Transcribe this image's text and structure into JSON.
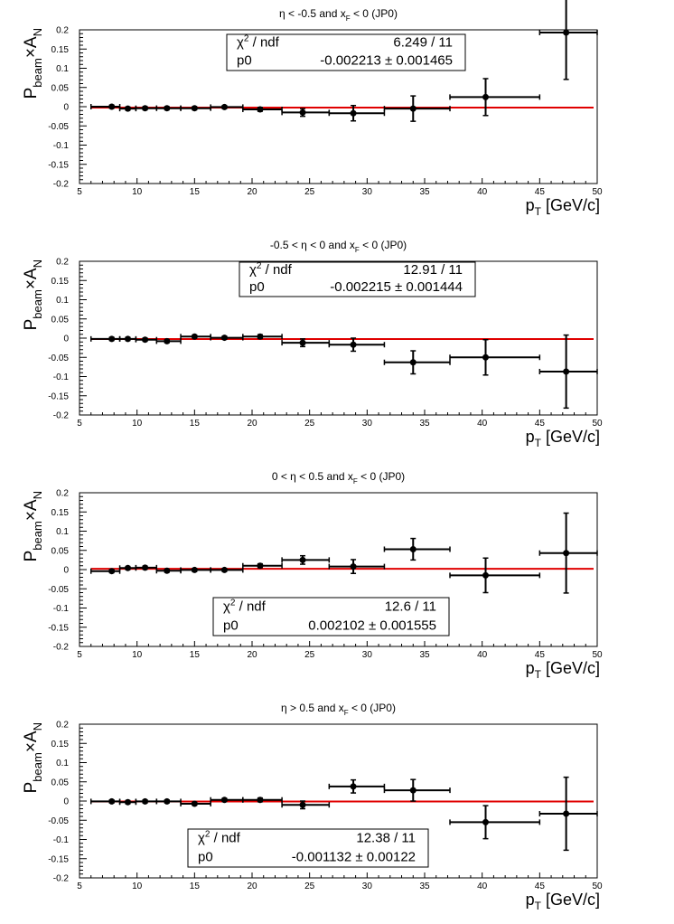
{
  "colors": {
    "fit_line": "#e00000",
    "points": "#000000",
    "frame": "#000000"
  },
  "chart_data": [
    {
      "type": "scatter",
      "title": "η < -0.5 and x_F < 0 (JP0)",
      "title_parts": [
        "η < -0.5 and x",
        "F",
        " < 0 (JP0)"
      ],
      "xlabel_parts": [
        "p",
        "T",
        " [GeV/c]"
      ],
      "ylabel_parts": [
        "P",
        "beam",
        "×A",
        "N"
      ],
      "xlim": [
        5,
        50
      ],
      "ylim": [
        -0.2,
        0.2
      ],
      "x_ticks": [
        "5",
        "10",
        "15",
        "20",
        "25",
        "30",
        "35",
        "40",
        "45",
        "50"
      ],
      "y_ticks": [
        "0.2",
        "0.15",
        "0.1",
        "0.05",
        "0",
        "-0.05",
        "-0.1",
        "-0.15",
        "-0.2"
      ],
      "fit": {
        "chi2_label": "χ",
        "chi2_sup": "2",
        "chi2_rest": " / ndf",
        "chi2_value": "6.249 / 11",
        "p0_label": "p0",
        "p0_value": "-0.002213 ± 0.001465",
        "p0": -0.002213,
        "stat_box_position": "top-center"
      },
      "points": [
        {
          "x": 7.8,
          "y": 0.0,
          "xerr_low": 1.8,
          "xerr_high": 0.7,
          "yerr": 0.004
        },
        {
          "x": 9.2,
          "y": -0.005,
          "xerr_low": 0.7,
          "xerr_high": 0.7,
          "yerr": 0.004
        },
        {
          "x": 10.7,
          "y": -0.004,
          "xerr_low": 0.8,
          "xerr_high": 1.0,
          "yerr": 0.004
        },
        {
          "x": 12.6,
          "y": -0.004,
          "xerr_low": 0.9,
          "xerr_high": 1.2,
          "yerr": 0.004
        },
        {
          "x": 15.0,
          "y": -0.004,
          "xerr_low": 1.2,
          "xerr_high": 1.4,
          "yerr": 0.004
        },
        {
          "x": 17.6,
          "y": -0.001,
          "xerr_low": 1.2,
          "xerr_high": 1.6,
          "yerr": 0.004
        },
        {
          "x": 20.7,
          "y": -0.007,
          "xerr_low": 1.5,
          "xerr_high": 1.9,
          "yerr": 0.005
        },
        {
          "x": 24.4,
          "y": -0.015,
          "xerr_low": 1.8,
          "xerr_high": 2.3,
          "yerr": 0.01
        },
        {
          "x": 28.8,
          "y": -0.017,
          "xerr_low": 2.1,
          "xerr_high": 2.7,
          "yerr": 0.02
        },
        {
          "x": 34.0,
          "y": -0.005,
          "xerr_low": 2.5,
          "xerr_high": 3.2,
          "yerr": 0.033
        },
        {
          "x": 40.3,
          "y": 0.025,
          "xerr_low": 3.1,
          "xerr_high": 4.7,
          "yerr": 0.048
        },
        {
          "x": 47.3,
          "y": 0.193,
          "xerr_low": 2.3,
          "xerr_high": 2.7,
          "yerr": 0.122
        }
      ]
    },
    {
      "type": "scatter",
      "title": "-0.5 < η < 0 and x_F < 0 (JP0)",
      "title_parts": [
        "-0.5 < η < 0 and x",
        "F",
        " < 0 (JP0)"
      ],
      "xlabel_parts": [
        "p",
        "T",
        " [GeV/c]"
      ],
      "ylabel_parts": [
        "P",
        "beam",
        "×A",
        "N"
      ],
      "xlim": [
        5,
        50
      ],
      "ylim": [
        -0.2,
        0.2
      ],
      "x_ticks": [
        "5",
        "10",
        "15",
        "20",
        "25",
        "30",
        "35",
        "40",
        "45",
        "50"
      ],
      "y_ticks": [
        "0.2",
        "0.15",
        "0.1",
        "0.05",
        "0",
        "-0.05",
        "-0.1",
        "-0.15",
        "-0.2"
      ],
      "fit": {
        "chi2_label": "χ",
        "chi2_sup": "2",
        "chi2_rest": " / ndf",
        "chi2_value": "12.91 / 11",
        "p0_label": "p0",
        "p0_value": "-0.002215 ± 0.001444",
        "p0": -0.002215,
        "stat_box_position": "top-center"
      },
      "points": [
        {
          "x": 7.8,
          "y": -0.002,
          "xerr_low": 1.8,
          "xerr_high": 0.7,
          "yerr": 0.004
        },
        {
          "x": 9.2,
          "y": -0.002,
          "xerr_low": 0.7,
          "xerr_high": 0.7,
          "yerr": 0.004
        },
        {
          "x": 10.7,
          "y": -0.004,
          "xerr_low": 0.8,
          "xerr_high": 1.0,
          "yerr": 0.004
        },
        {
          "x": 12.6,
          "y": -0.008,
          "xerr_low": 0.9,
          "xerr_high": 1.2,
          "yerr": 0.004
        },
        {
          "x": 15.0,
          "y": 0.004,
          "xerr_low": 1.2,
          "xerr_high": 1.4,
          "yerr": 0.004
        },
        {
          "x": 17.6,
          "y": 0.001,
          "xerr_low": 1.2,
          "xerr_high": 1.6,
          "yerr": 0.004
        },
        {
          "x": 20.7,
          "y": 0.004,
          "xerr_low": 1.5,
          "xerr_high": 1.9,
          "yerr": 0.005
        },
        {
          "x": 24.4,
          "y": -0.012,
          "xerr_low": 1.8,
          "xerr_high": 2.3,
          "yerr": 0.01
        },
        {
          "x": 28.8,
          "y": -0.017,
          "xerr_low": 2.1,
          "xerr_high": 2.7,
          "yerr": 0.017
        },
        {
          "x": 34.0,
          "y": -0.063,
          "xerr_low": 2.5,
          "xerr_high": 3.2,
          "yerr": 0.03
        },
        {
          "x": 40.3,
          "y": -0.05,
          "xerr_low": 3.1,
          "xerr_high": 4.7,
          "yerr": 0.046
        },
        {
          "x": 47.3,
          "y": -0.087,
          "xerr_low": 2.3,
          "xerr_high": 2.7,
          "yerr": 0.095
        }
      ]
    },
    {
      "type": "scatter",
      "title": "0 < η < 0.5 and x_F < 0 (JP0)",
      "title_parts": [
        "0 < η < 0.5 and x",
        "F",
        " < 0 (JP0)"
      ],
      "xlabel_parts": [
        "p",
        "T",
        " [GeV/c]"
      ],
      "ylabel_parts": [
        "P",
        "beam",
        "×A",
        "N"
      ],
      "xlim": [
        5,
        50
      ],
      "ylim": [
        -0.2,
        0.2
      ],
      "x_ticks": [
        "5",
        "10",
        "15",
        "20",
        "25",
        "30",
        "35",
        "40",
        "45",
        "50"
      ],
      "y_ticks": [
        "0.2",
        "0.15",
        "0.1",
        "0.05",
        "0",
        "-0.05",
        "-0.1",
        "-0.15",
        "-0.2"
      ],
      "fit": {
        "chi2_label": "χ",
        "chi2_sup": "2",
        "chi2_rest": " / ndf",
        "chi2_value": "12.6 / 11",
        "p0_label": "p0",
        "p0_value": "0.002102 ± 0.001555",
        "p0": 0.002102,
        "stat_box_position": "bottom-center"
      },
      "points": [
        {
          "x": 7.8,
          "y": -0.004,
          "xerr_low": 1.8,
          "xerr_high": 0.7,
          "yerr": 0.004
        },
        {
          "x": 9.2,
          "y": 0.004,
          "xerr_low": 0.7,
          "xerr_high": 0.7,
          "yerr": 0.004
        },
        {
          "x": 10.7,
          "y": 0.005,
          "xerr_low": 0.8,
          "xerr_high": 1.0,
          "yerr": 0.004
        },
        {
          "x": 12.6,
          "y": -0.003,
          "xerr_low": 0.9,
          "xerr_high": 1.2,
          "yerr": 0.004
        },
        {
          "x": 15.0,
          "y": -0.001,
          "xerr_low": 1.2,
          "xerr_high": 1.4,
          "yerr": 0.004
        },
        {
          "x": 17.6,
          "y": -0.001,
          "xerr_low": 1.2,
          "xerr_high": 1.6,
          "yerr": 0.004
        },
        {
          "x": 20.7,
          "y": 0.01,
          "xerr_low": 1.5,
          "xerr_high": 1.9,
          "yerr": 0.005
        },
        {
          "x": 24.4,
          "y": 0.025,
          "xerr_low": 1.8,
          "xerr_high": 2.3,
          "yerr": 0.011
        },
        {
          "x": 28.8,
          "y": 0.008,
          "xerr_low": 2.1,
          "xerr_high": 2.7,
          "yerr": 0.018
        },
        {
          "x": 34.0,
          "y": 0.053,
          "xerr_low": 2.5,
          "xerr_high": 3.2,
          "yerr": 0.028
        },
        {
          "x": 40.3,
          "y": -0.015,
          "xerr_low": 3.1,
          "xerr_high": 4.7,
          "yerr": 0.045
        },
        {
          "x": 47.3,
          "y": 0.043,
          "xerr_low": 2.3,
          "xerr_high": 2.7,
          "yerr": 0.104
        }
      ]
    },
    {
      "type": "scatter",
      "title": "η > 0.5 and x_F < 0 (JP0)",
      "title_parts": [
        "η > 0.5 and x",
        "F",
        " < 0 (JP0)"
      ],
      "xlabel_parts": [
        "p",
        "T",
        " [GeV/c]"
      ],
      "ylabel_parts": [
        "P",
        "beam",
        "×A",
        "N"
      ],
      "xlim": [
        5,
        50
      ],
      "ylim": [
        -0.2,
        0.2
      ],
      "x_ticks": [
        "5",
        "10",
        "15",
        "20",
        "25",
        "30",
        "35",
        "40",
        "45",
        "50"
      ],
      "y_ticks": [
        "0.2",
        "0.15",
        "0.1",
        "0.05",
        "0",
        "-0.05",
        "-0.1",
        "-0.15",
        "-0.2"
      ],
      "fit": {
        "chi2_label": "χ",
        "chi2_sup": "2",
        "chi2_rest": " / ndf",
        "chi2_value": "12.38 / 11",
        "p0_label": "p0",
        "p0_value": "-0.001132 ± 0.00122",
        "p0": -0.001132,
        "stat_box_position": "bottom-center"
      },
      "points": [
        {
          "x": 7.8,
          "y": -0.001,
          "xerr_low": 1.8,
          "xerr_high": 0.7,
          "yerr": 0.004
        },
        {
          "x": 9.2,
          "y": -0.003,
          "xerr_low": 0.7,
          "xerr_high": 0.7,
          "yerr": 0.004
        },
        {
          "x": 10.7,
          "y": -0.001,
          "xerr_low": 0.8,
          "xerr_high": 1.0,
          "yerr": 0.004
        },
        {
          "x": 12.6,
          "y": -0.001,
          "xerr_low": 0.9,
          "xerr_high": 1.2,
          "yerr": 0.004
        },
        {
          "x": 15.0,
          "y": -0.007,
          "xerr_low": 1.2,
          "xerr_high": 1.4,
          "yerr": 0.004
        },
        {
          "x": 17.6,
          "y": 0.003,
          "xerr_low": 1.2,
          "xerr_high": 1.6,
          "yerr": 0.004
        },
        {
          "x": 20.7,
          "y": 0.003,
          "xerr_low": 1.5,
          "xerr_high": 1.9,
          "yerr": 0.005
        },
        {
          "x": 24.4,
          "y": -0.01,
          "xerr_low": 1.8,
          "xerr_high": 2.3,
          "yerr": 0.01
        },
        {
          "x": 28.8,
          "y": 0.038,
          "xerr_low": 2.1,
          "xerr_high": 2.7,
          "yerr": 0.017
        },
        {
          "x": 34.0,
          "y": 0.028,
          "xerr_low": 2.5,
          "xerr_high": 3.2,
          "yerr": 0.028
        },
        {
          "x": 40.3,
          "y": -0.055,
          "xerr_low": 3.1,
          "xerr_high": 4.7,
          "yerr": 0.043
        },
        {
          "x": 47.3,
          "y": -0.033,
          "xerr_low": 2.3,
          "xerr_high": 2.7,
          "yerr": 0.095
        }
      ]
    }
  ]
}
